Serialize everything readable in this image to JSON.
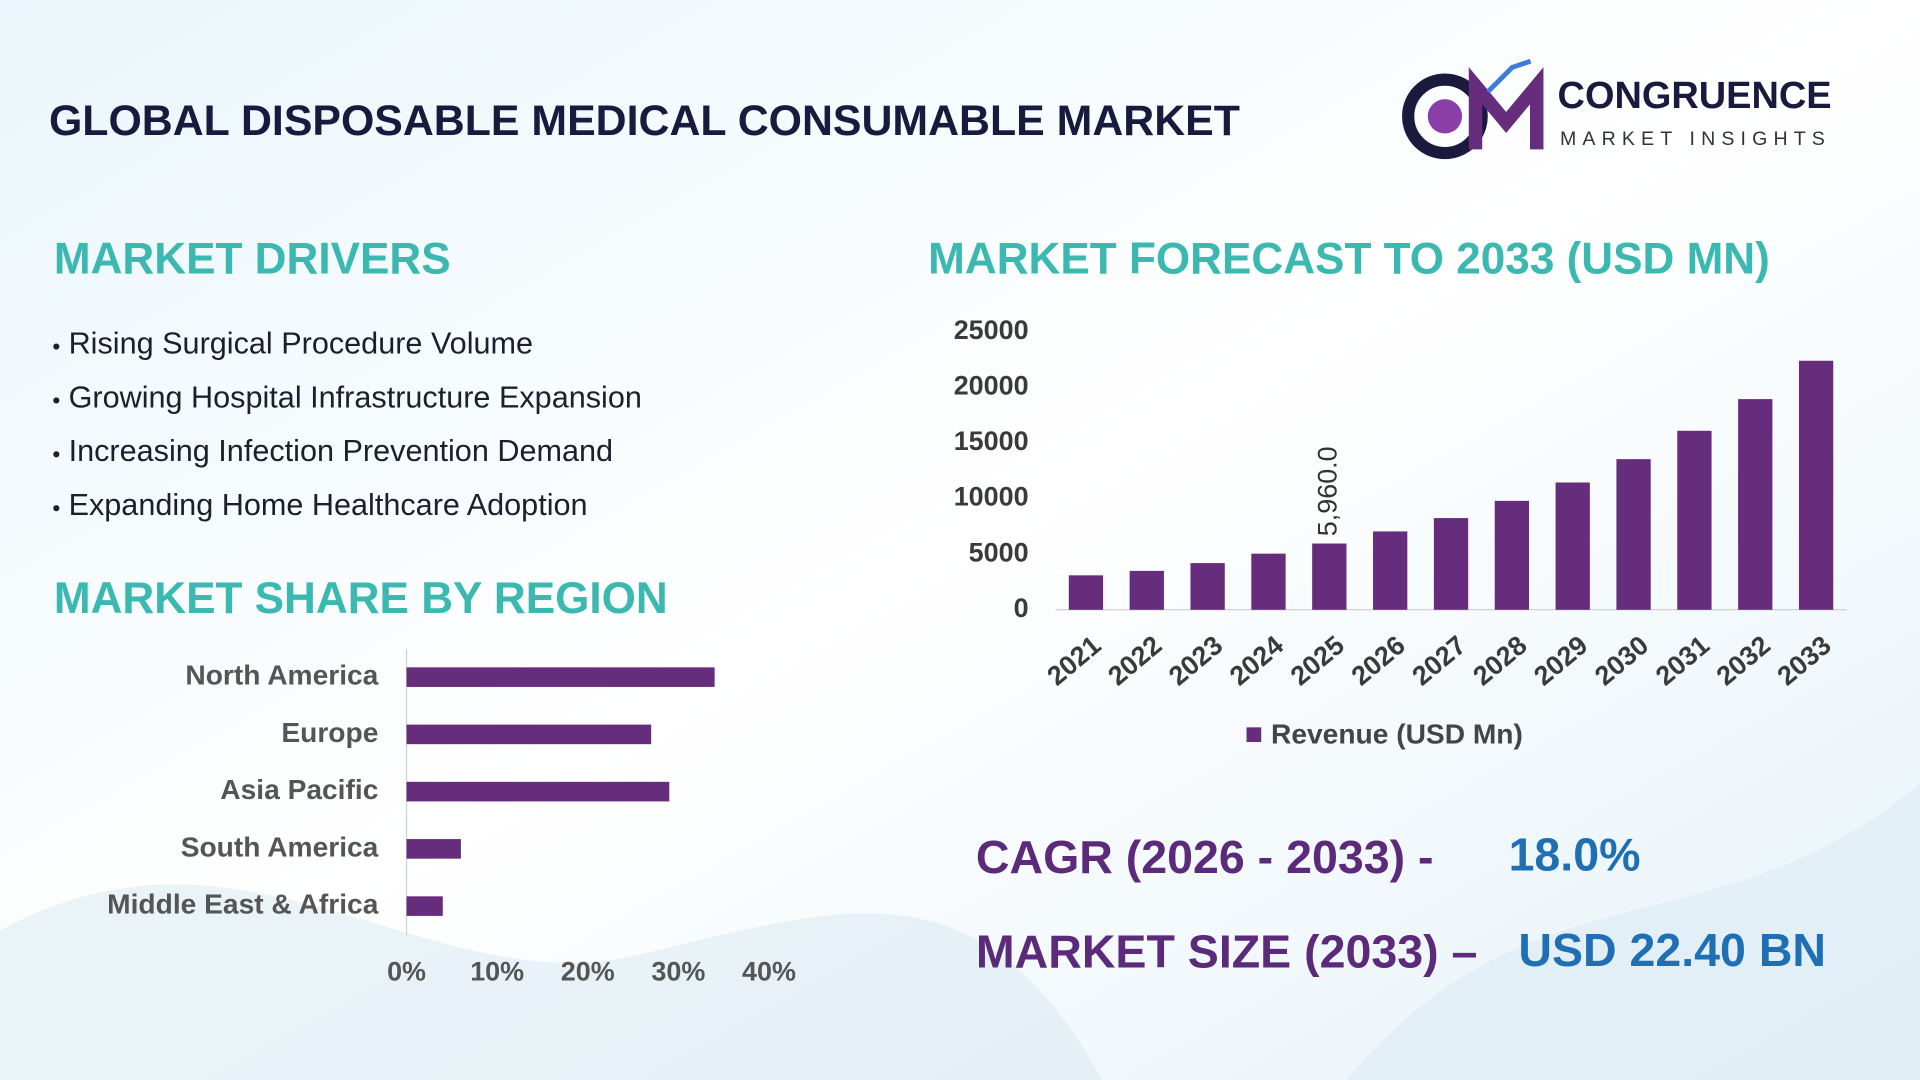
{
  "header": {
    "title": "GLOBAL DISPOSABLE MEDICAL CONSUMABLE MARKET",
    "logo": {
      "name": "CONGRUENCE",
      "tagline": "MARKET INSIGHTS"
    }
  },
  "drivers": {
    "title": "MARKET DRIVERS",
    "items": [
      "Rising Surgical Procedure Volume",
      "Growing Hospital Infrastructure Expansion",
      "Increasing Infection Prevention Demand",
      "Expanding Home Healthcare Adoption"
    ]
  },
  "metrics": [
    {
      "label": "CAGR (2026 - 2033) -",
      "value": "18.0%"
    },
    {
      "label": "MARKET SIZE (2033) –",
      "value": "USD 22.40 BN"
    }
  ],
  "chart_data": [
    {
      "type": "bar",
      "title": "MARKET FORECAST TO 2033 (USD MN)",
      "categories": [
        "2021",
        "2022",
        "2023",
        "2024",
        "2025",
        "2026",
        "2027",
        "2028",
        "2029",
        "2030",
        "2031",
        "2032",
        "2033"
      ],
      "series": [
        {
          "name": "Revenue (USD Mn)",
          "color": "#662d7d",
          "values": [
            3100,
            3500,
            4200,
            5050,
            5960,
            7050,
            8250,
            9800,
            11450,
            13550,
            16100,
            18950,
            22400
          ],
          "value_labels": [
            null,
            null,
            null,
            null,
            "5,960.0",
            null,
            null,
            null,
            null,
            null,
            null,
            null,
            null
          ]
        }
      ],
      "ylim": [
        0,
        25000
      ],
      "yticks": [
        0,
        5000,
        10000,
        15000,
        20000,
        25000
      ],
      "legend": "bottom"
    },
    {
      "type": "barh",
      "title": "MARKET SHARE BY REGION",
      "categories": [
        "North America",
        "Europe",
        "Asia Pacific",
        "South America",
        "Middle East & Africa"
      ],
      "values": [
        34,
        27,
        29,
        6,
        4
      ],
      "color": "#662d7d",
      "xlim": [
        0,
        40
      ],
      "xticks": [
        {
          "value": 0,
          "label": "0%"
        },
        {
          "value": 10,
          "label": "10%"
        },
        {
          "value": 20,
          "label": "20%"
        },
        {
          "value": 30,
          "label": "30%"
        },
        {
          "value": 40,
          "label": "40%"
        }
      ]
    }
  ]
}
